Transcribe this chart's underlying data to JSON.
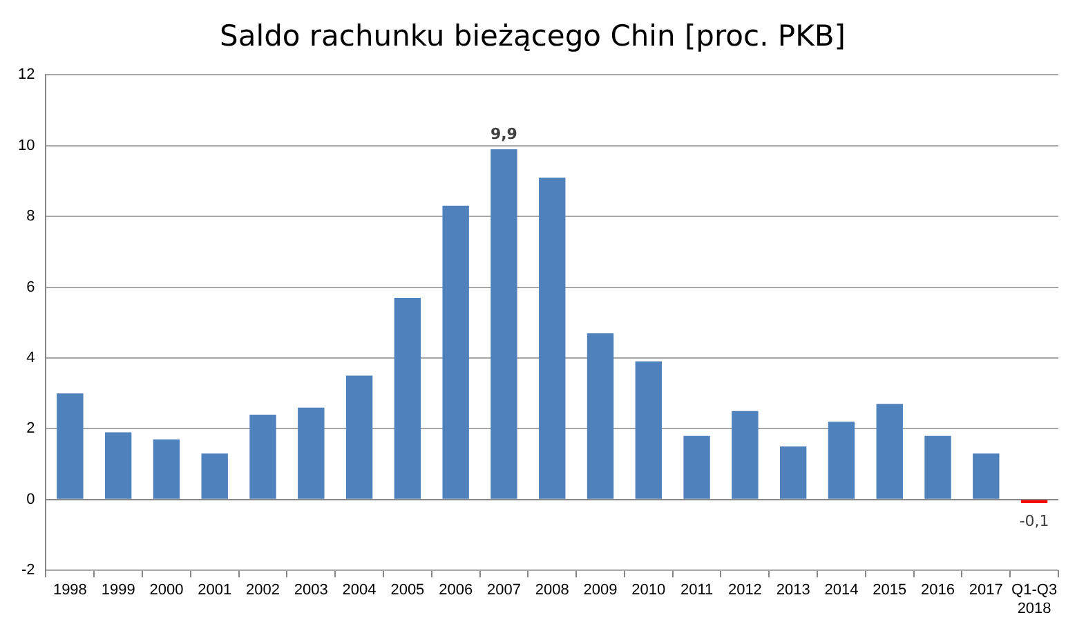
{
  "chart_data": {
    "type": "bar",
    "title": "Saldo rachunku bieżącego Chin [proc. PKB]",
    "categories": [
      "1998",
      "1999",
      "2000",
      "2001",
      "2002",
      "2003",
      "2004",
      "2005",
      "2006",
      "2007",
      "2008",
      "2009",
      "2010",
      "2011",
      "2012",
      "2013",
      "2014",
      "2015",
      "2016",
      "2017",
      "Q1-Q3\n2018"
    ],
    "values": [
      3.0,
      1.9,
      1.7,
      1.3,
      2.4,
      2.6,
      3.5,
      5.7,
      8.3,
      9.9,
      9.1,
      4.7,
      3.9,
      1.8,
      2.5,
      1.5,
      2.2,
      2.7,
      1.8,
      1.3,
      -0.1
    ],
    "colors": [
      "#4f81bd",
      "#4f81bd",
      "#4f81bd",
      "#4f81bd",
      "#4f81bd",
      "#4f81bd",
      "#4f81bd",
      "#4f81bd",
      "#4f81bd",
      "#4f81bd",
      "#4f81bd",
      "#4f81bd",
      "#4f81bd",
      "#4f81bd",
      "#4f81bd",
      "#4f81bd",
      "#4f81bd",
      "#4f81bd",
      "#4f81bd",
      "#4f81bd",
      "#ff0000"
    ],
    "value_labels": [
      null,
      null,
      null,
      null,
      null,
      null,
      null,
      null,
      null,
      "9,9",
      null,
      null,
      null,
      null,
      null,
      null,
      null,
      null,
      null,
      null,
      "-0,1"
    ],
    "ylim": [
      -2,
      12
    ],
    "yticks": [
      -2,
      0,
      2,
      4,
      6,
      8,
      10,
      12
    ],
    "grid": "y",
    "legend": false
  }
}
